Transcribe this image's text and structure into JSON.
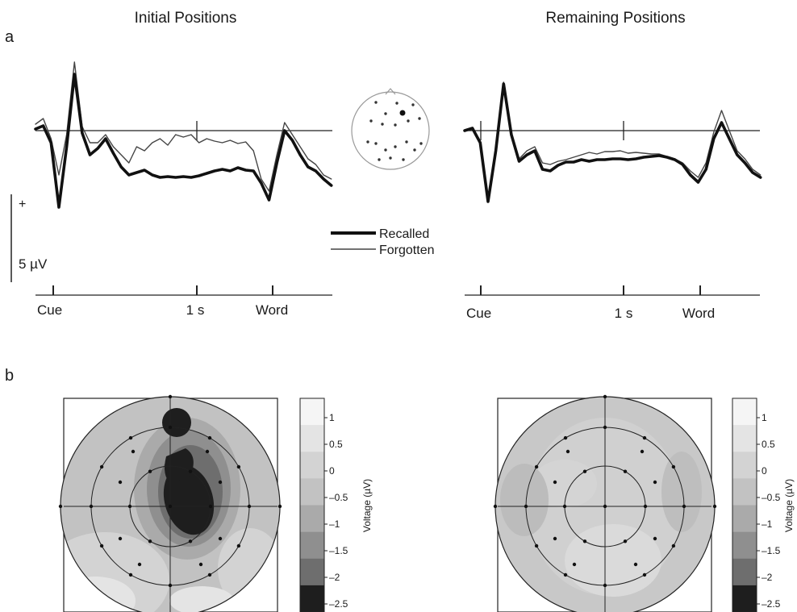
{
  "panel_a": {
    "label": "a",
    "titles": [
      "Initial Positions",
      "Remaining Positions"
    ],
    "scale": {
      "plus": "+",
      "label": "5 µV"
    },
    "legend": [
      {
        "label": "Recalled",
        "color": "#111111",
        "width": "thick"
      },
      {
        "label": "Forgotten",
        "color": "#444444",
        "width": "thin"
      }
    ],
    "time_axis": [
      "Cue",
      "1 s",
      "Word"
    ]
  },
  "panel_b": {
    "label": "b",
    "colorbar": {
      "label": "Voltage (µV)",
      "ticks": [
        "1",
        "0.5",
        "0",
        "–0.5",
        "–1",
        "–1.5",
        "–2",
        "–2.5"
      ]
    }
  },
  "chart_data": [
    {
      "type": "line",
      "title": "Initial Positions",
      "xlabel": "",
      "ylabel": "",
      "x_ticks": [
        "Cue",
        "1 s",
        "Word"
      ],
      "x": [
        0,
        0.05,
        0.1,
        0.15,
        0.2,
        0.25,
        0.3,
        0.35,
        0.4,
        0.45,
        0.5,
        0.55,
        0.6,
        0.65,
        0.7,
        0.75,
        0.8,
        0.85,
        0.9,
        0.95,
        1.0,
        1.05,
        1.1,
        1.15,
        1.2,
        1.25,
        1.3,
        1.35,
        1.4,
        1.45,
        1.5,
        1.55,
        1.6,
        1.65,
        1.7,
        1.75,
        1.8,
        1.85,
        1.9
      ],
      "series": [
        {
          "name": "Recalled",
          "values": [
            0.2,
            0.6,
            -1.5,
            -9.5,
            -2.0,
            7.0,
            -0.3,
            -3.0,
            -2.2,
            -1.0,
            -2.8,
            -4.5,
            -5.5,
            -5.2,
            -4.9,
            -5.5,
            -5.8,
            -5.7,
            -5.8,
            -5.7,
            -5.8,
            -5.6,
            -5.3,
            -5.0,
            -4.8,
            -5.0,
            -4.6,
            -4.9,
            -5.0,
            -6.5,
            -8.6,
            -4.0,
            0.0,
            -1.2,
            -3.0,
            -4.5,
            -5.0,
            -6.0,
            -6.8
          ]
        },
        {
          "name": "Forgotten",
          "values": [
            0.8,
            1.5,
            -1.0,
            -5.5,
            -0.5,
            8.5,
            0.5,
            -1.5,
            -1.5,
            -0.5,
            -2.0,
            -3.0,
            -4.0,
            -2.0,
            -2.5,
            -1.5,
            -1.0,
            -1.8,
            -0.5,
            -0.8,
            -0.5,
            -1.5,
            -1.0,
            -1.3,
            -1.5,
            -1.2,
            -1.6,
            -1.4,
            -2.5,
            -6.0,
            -7.5,
            -3.0,
            1.0,
            -0.5,
            -2.0,
            -3.5,
            -4.2,
            -5.5,
            -6.0
          ]
        }
      ]
    },
    {
      "type": "line",
      "title": "Remaining Positions",
      "xlabel": "",
      "ylabel": "",
      "x_ticks": [
        "Cue",
        "1 s",
        "Word"
      ],
      "x": [
        0,
        0.05,
        0.1,
        0.15,
        0.2,
        0.25,
        0.3,
        0.35,
        0.4,
        0.45,
        0.5,
        0.55,
        0.6,
        0.65,
        0.7,
        0.75,
        0.8,
        0.85,
        0.9,
        0.95,
        1.0,
        1.05,
        1.1,
        1.15,
        1.2,
        1.25,
        1.3,
        1.35,
        1.4,
        1.45,
        1.5,
        1.55,
        1.6,
        1.65,
        1.7,
        1.75,
        1.8,
        1.85,
        1.9
      ],
      "series": [
        {
          "name": "Recalled",
          "values": [
            0.0,
            0.3,
            -1.5,
            -8.8,
            -2.5,
            5.8,
            -0.5,
            -3.8,
            -3.0,
            -2.5,
            -4.8,
            -5.0,
            -4.3,
            -3.9,
            -3.9,
            -3.6,
            -3.8,
            -3.6,
            -3.6,
            -3.5,
            -3.5,
            -3.6,
            -3.5,
            -3.3,
            -3.2,
            -3.1,
            -3.3,
            -3.6,
            -4.2,
            -5.5,
            -6.4,
            -4.8,
            -1.0,
            1.0,
            -1.0,
            -3.0,
            -4.0,
            -5.2,
            -5.8
          ]
        },
        {
          "name": "Forgotten",
          "values": [
            0.0,
            0.3,
            -1.5,
            -8.5,
            -2.3,
            6.0,
            -0.3,
            -3.5,
            -2.5,
            -2.0,
            -4.0,
            -4.2,
            -3.8,
            -3.6,
            -3.3,
            -3.0,
            -2.7,
            -2.9,
            -2.6,
            -2.6,
            -2.5,
            -2.8,
            -2.7,
            -2.8,
            -2.9,
            -2.9,
            -3.2,
            -3.5,
            -4.0,
            -5.0,
            -5.8,
            -4.0,
            -0.2,
            2.5,
            0.0,
            -2.5,
            -3.5,
            -4.8,
            -5.5
          ]
        }
      ]
    },
    {
      "type": "heatmap",
      "title": "",
      "legend_title": "Voltage (µV)",
      "range": [
        -2.5,
        1
      ],
      "levels": [
        1,
        0.5,
        0,
        -0.5,
        -1,
        -1.5,
        -2,
        -2.5
      ],
      "level_colors": [
        "#f5f5f5",
        "#e4e4e4",
        "#d3d3d3",
        "#c2c2c2",
        "#aaaaaa",
        "#8f8f8f",
        "#6e6e6e",
        "#1e1e1e"
      ]
    }
  ]
}
